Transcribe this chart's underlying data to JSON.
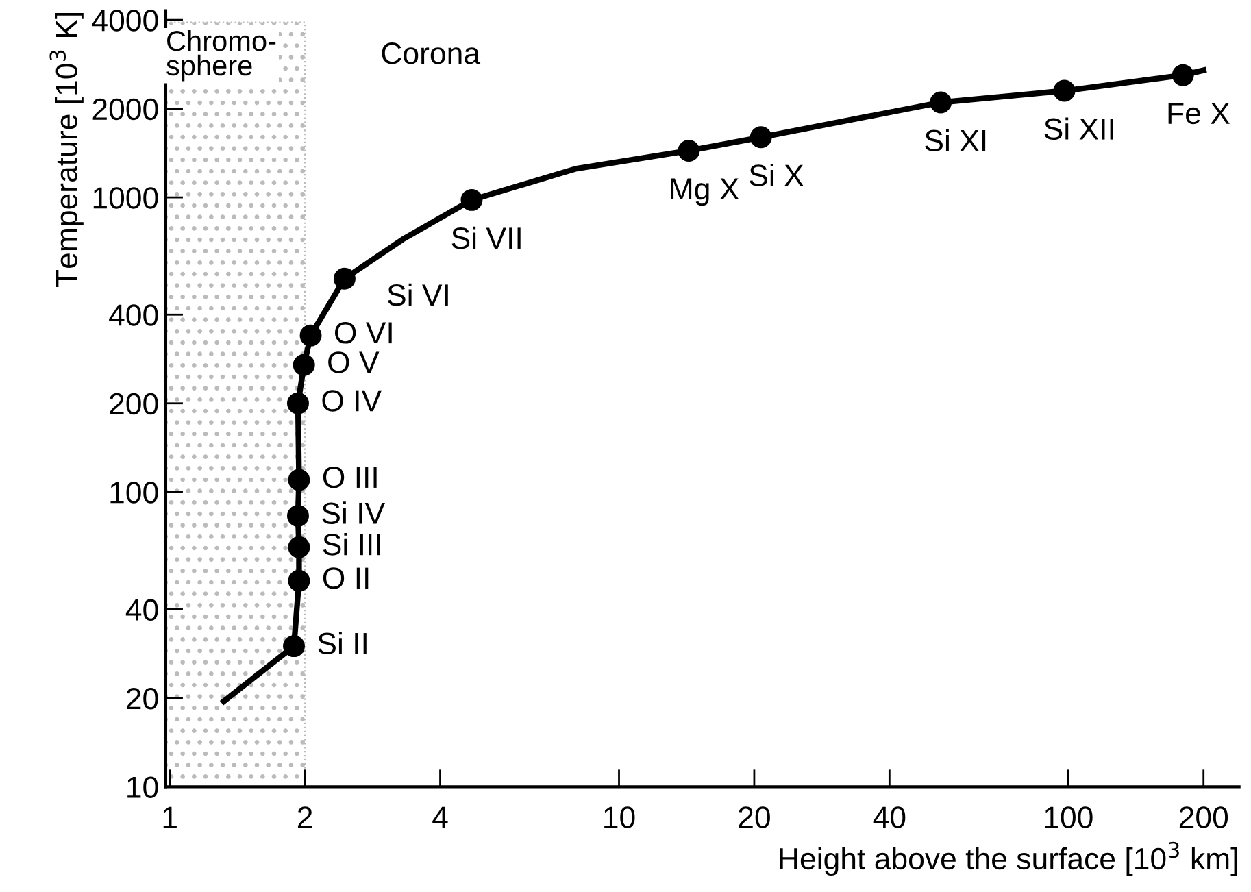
{
  "chart_data": {
    "type": "line",
    "xlabel": "Height above the surface [10$^{3}$ km]",
    "ylabel": "Temperature [10$^{3}$ K]",
    "log": "xy",
    "xlim": [
      0.98,
      240
    ],
    "xticks": [
      1,
      2,
      4,
      10,
      20,
      40,
      100,
      200
    ],
    "ylim": [
      10,
      4300
    ],
    "yticks": [
      10,
      20,
      40,
      100,
      200,
      400,
      1000,
      2000,
      4000
    ],
    "grid": false,
    "legend": false,
    "series": [
      {
        "color": "#000000",
        "marker": "none",
        "line_style": "solid",
        "x": [
          1.32,
          1.89,
          1.94,
          1.94,
          1.93,
          1.94,
          1.93,
          1.99,
          2.06,
          2.45,
          3.3,
          4.7,
          8.0,
          14.3,
          20.7,
          52,
          98,
          180,
          200
        ],
        "values": [
          19.5,
          30,
          50,
          65,
          83,
          110,
          200,
          270,
          340,
          530,
          720,
          980,
          1250,
          1440,
          1600,
          2100,
          2300,
          2600,
          2700
        ]
      },
      {
        "type": "scatter",
        "color": "#000000",
        "marker": "circle",
        "x": [
          1.89,
          1.94,
          1.94,
          1.93,
          1.94,
          1.93,
          1.99,
          2.06,
          2.45,
          4.7,
          14.3,
          20.7,
          52,
          98,
          180
        ],
        "values": [
          30,
          50,
          65,
          83,
          110,
          200,
          270,
          340,
          530,
          980,
          1440,
          1600,
          2100,
          2300,
          2600
        ]
      }
    ],
    "bands": [
      {
        "axis": "x",
        "from": 0.98,
        "to": 2,
        "label": "Chromo-\nsphere",
        "color": "#bbbbbb"
      }
    ],
    "annotations": [
      {
        "text": "Si II",
        "x": 1.89,
        "y": 30
      },
      {
        "text": "O II",
        "x": 1.94,
        "y": 50
      },
      {
        "text": "Si III",
        "x": 1.94,
        "y": 65
      },
      {
        "text": "Si IV",
        "x": 1.93,
        "y": 83
      },
      {
        "text": "O III",
        "x": 1.94,
        "y": 110
      },
      {
        "text": "O IV",
        "x": 1.93,
        "y": 200
      },
      {
        "text": "O V",
        "x": 1.99,
        "y": 270
      },
      {
        "text": "O VI",
        "x": 2.06,
        "y": 340
      },
      {
        "text": "Si VI",
        "x": 2.45,
        "y": 530
      },
      {
        "text": "Si VII",
        "x": 4.7,
        "y": 980
      },
      {
        "text": "Mg X",
        "x": 14.3,
        "y": 1440
      },
      {
        "text": "Si X",
        "x": 20.7,
        "y": 1600
      },
      {
        "text": "Si XI",
        "x": 52,
        "y": 2100
      },
      {
        "text": "Si XII",
        "x": 98,
        "y": 2300
      },
      {
        "text": "Fe X",
        "x": 180,
        "y": 2600
      },
      "Corona"
    ]
  }
}
